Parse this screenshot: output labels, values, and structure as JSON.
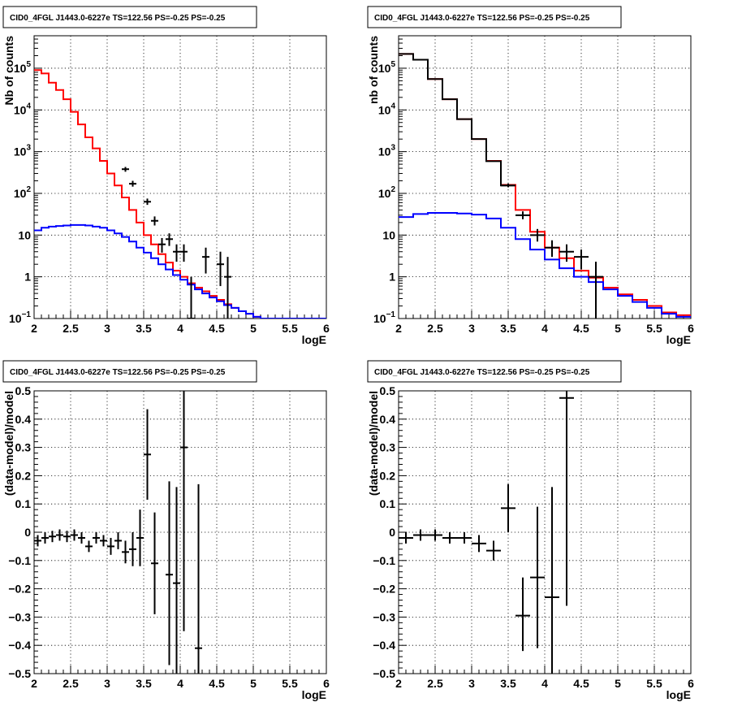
{
  "chart_data": [
    {
      "id": "spec_left",
      "type": "line",
      "title": "CID0_4FGL J1443.0-6227e TS=122.56 PS=-0.25 PS=-0.25",
      "xlabel": "logE",
      "ylabel": "Nb of counts",
      "log_y": true,
      "xlim": [
        2,
        6
      ],
      "ylim": [
        0.1,
        600000
      ],
      "x_ticks": [
        "2",
        "2.5",
        "3",
        "3.5",
        "4",
        "4.5",
        "5",
        "5.5",
        "6"
      ],
      "y_ticks": [
        {
          "v": 0.1,
          "base": "10",
          "exp": "−1"
        },
        {
          "v": 1,
          "base": "1",
          "exp": ""
        },
        {
          "v": 10,
          "base": "10",
          "exp": ""
        },
        {
          "v": 100,
          "base": "10",
          "exp": "2"
        },
        {
          "v": 1000,
          "base": "10",
          "exp": "3"
        },
        {
          "v": 10000,
          "base": "10",
          "exp": "4"
        },
        {
          "v": 100000,
          "base": "10",
          "exp": "5"
        }
      ],
      "bin_edges": [
        2.0,
        2.1,
        2.2,
        2.3,
        2.4,
        2.5,
        2.6,
        2.7,
        2.8,
        2.9,
        3.0,
        3.1,
        3.2,
        3.3,
        3.4,
        3.5,
        3.6,
        3.7,
        3.8,
        3.9,
        4.0,
        4.1,
        4.2,
        4.3,
        4.4,
        4.5,
        4.6,
        4.7,
        4.8,
        4.9,
        5.0,
        5.1,
        5.2,
        5.3,
        5.4,
        5.5,
        5.6,
        5.7,
        5.8,
        5.9,
        6.0
      ],
      "series": [
        {
          "color": "#ff0000",
          "style": "step",
          "values": [
            90000,
            75000,
            45000,
            30000,
            18000,
            9000,
            4500,
            2200,
            1200,
            600,
            300,
            155,
            80,
            40,
            20,
            10,
            6,
            3.5,
            2.2,
            1.4,
            1.0,
            0.7,
            0.55,
            0.45,
            0.35,
            0.28,
            0.22,
            0.18,
            0.15,
            0.13,
            0.11,
            0.1,
            0.1,
            0.1,
            0.1,
            0.1,
            0.1,
            0.1,
            0.1,
            0.1
          ]
        },
        {
          "color": "#0000ff",
          "style": "step",
          "values": [
            13,
            15,
            16,
            16.5,
            17,
            17.5,
            17.5,
            17,
            16,
            15,
            13,
            11,
            9,
            7,
            5,
            3.8,
            2.8,
            2.0,
            1.5,
            1.1,
            0.85,
            0.65,
            0.5,
            0.4,
            0.32,
            0.26,
            0.21,
            0.18,
            0.15,
            0.13,
            0.11,
            0.1,
            0.1,
            0.1,
            0.1,
            0.1,
            0.1,
            0.1,
            0.1,
            0.1
          ]
        }
      ],
      "points": [
        {
          "x": 3.25,
          "y": 380,
          "xerr": 0.05,
          "lo": 330,
          "hi": 430
        },
        {
          "x": 3.35,
          "y": 170,
          "xerr": 0.05,
          "lo": 145,
          "hi": 200
        },
        {
          "x": 3.55,
          "y": 63,
          "xerr": 0.05,
          "lo": 53,
          "hi": 75
        },
        {
          "x": 3.65,
          "y": 22,
          "xerr": 0.05,
          "lo": 17,
          "hi": 28
        },
        {
          "x": 3.75,
          "y": 6,
          "xerr": 0.05,
          "lo": 3.8,
          "hi": 8.5
        },
        {
          "x": 3.85,
          "y": 8,
          "xerr": 0.05,
          "lo": 5.5,
          "hi": 11
        },
        {
          "x": 3.95,
          "y": 4,
          "xerr": 0.05,
          "lo": 2.3,
          "hi": 6
        },
        {
          "x": 4.05,
          "y": 4,
          "xerr": 0.05,
          "lo": 2.3,
          "hi": 6
        },
        {
          "x": 4.15,
          "y": 0,
          "xerr": 0.05,
          "lo": 0.1,
          "hi": 1.0
        },
        {
          "x": 4.35,
          "y": 3,
          "xerr": 0.05,
          "lo": 1.2,
          "hi": 5
        },
        {
          "x": 4.55,
          "y": 2,
          "xerr": 0.05,
          "lo": 0.6,
          "hi": 4
        },
        {
          "x": 4.65,
          "y": 1,
          "xerr": 0.05,
          "lo": 0.1,
          "hi": 3
        }
      ]
    },
    {
      "id": "spec_right",
      "type": "line",
      "title": "CID0_4FGL J1443.0-6227e TS=122.56 PS=-0.25 PS=-0.25",
      "xlabel": "logE",
      "ylabel": "nb of counts",
      "log_y": true,
      "xlim": [
        2,
        6
      ],
      "ylim": [
        0.1,
        600000
      ],
      "x_ticks": [
        "2",
        "2.5",
        "3",
        "3.5",
        "4",
        "4.5",
        "5",
        "5.5",
        "6"
      ],
      "y_ticks": [
        {
          "v": 0.1,
          "base": "10",
          "exp": "−1"
        },
        {
          "v": 1,
          "base": "1",
          "exp": ""
        },
        {
          "v": 10,
          "base": "10",
          "exp": ""
        },
        {
          "v": 100,
          "base": "10",
          "exp": "2"
        },
        {
          "v": 1000,
          "base": "10",
          "exp": "3"
        },
        {
          "v": 10000,
          "base": "10",
          "exp": "4"
        },
        {
          "v": 100000,
          "base": "10",
          "exp": "5"
        }
      ],
      "bin_edges": [
        2.0,
        2.2,
        2.4,
        2.6,
        2.8,
        3.0,
        3.2,
        3.4,
        3.6,
        3.8,
        4.0,
        4.2,
        4.4,
        4.6,
        4.8,
        5.0,
        5.2,
        5.4,
        5.6,
        5.8,
        6.0
      ],
      "series": [
        {
          "color": "#ff0000",
          "style": "step",
          "values": [
            220000,
            160000,
            55000,
            18000,
            6000,
            2000,
            600,
            160,
            40,
            12,
            5,
            2.8,
            1.4,
            0.95,
            0.55,
            0.38,
            0.28,
            0.2,
            0.14,
            0.12
          ]
        },
        {
          "color": "#0000ff",
          "style": "step",
          "values": [
            27,
            32,
            34,
            34,
            33,
            31,
            25,
            15,
            8,
            4.5,
            2.6,
            1.6,
            1.0,
            0.75,
            0.5,
            0.35,
            0.25,
            0.18,
            0.13,
            0.11
          ]
        },
        {
          "color": "#000000",
          "style": "step",
          "values": [
            220000,
            160000,
            55000,
            18000,
            6000,
            2000,
            590,
            155,
            0,
            0,
            0,
            0,
            0,
            0,
            0,
            0,
            0,
            0,
            0,
            0
          ]
        }
      ],
      "points": [
        {
          "x": 3.5,
          "y": 155,
          "xerr": 0.1,
          "lo": 140,
          "hi": 172
        },
        {
          "x": 3.7,
          "y": 30,
          "xerr": 0.1,
          "lo": 24,
          "hi": 37
        },
        {
          "x": 3.9,
          "y": 10,
          "xerr": 0.1,
          "lo": 7,
          "hi": 14
        },
        {
          "x": 4.1,
          "y": 5,
          "xerr": 0.1,
          "lo": 3,
          "hi": 7.5
        },
        {
          "x": 4.3,
          "y": 4,
          "xerr": 0.1,
          "lo": 2.3,
          "hi": 6
        },
        {
          "x": 4.5,
          "y": 3,
          "xerr": 0.1,
          "lo": 1.5,
          "hi": 4.5
        },
        {
          "x": 4.7,
          "y": 1,
          "xerr": 0.1,
          "lo": 0.1,
          "hi": 2.3
        }
      ]
    },
    {
      "id": "resid_left",
      "type": "scatter",
      "title": "CID0_4FGL J1443.0-6227e TS=122.56 PS=-0.25 PS=-0.25",
      "xlabel": "logE",
      "ylabel": "(data-model)/model",
      "log_y": false,
      "xlim": [
        2,
        6
      ],
      "ylim": [
        -0.5,
        0.5
      ],
      "x_ticks": [
        "2",
        "2.5",
        "3",
        "3.5",
        "4",
        "4.5",
        "5",
        "5.5",
        "6"
      ],
      "y_ticks": [
        {
          "v": -0.5,
          "base": "−0.5",
          "exp": ""
        },
        {
          "v": -0.4,
          "base": "−0.4",
          "exp": ""
        },
        {
          "v": -0.3,
          "base": "−0.3",
          "exp": ""
        },
        {
          "v": -0.2,
          "base": "−0.2",
          "exp": ""
        },
        {
          "v": -0.1,
          "base": "−0.1",
          "exp": ""
        },
        {
          "v": 0,
          "base": "0",
          "exp": ""
        },
        {
          "v": 0.1,
          "base": "0.1",
          "exp": ""
        },
        {
          "v": 0.2,
          "base": "0.2",
          "exp": ""
        },
        {
          "v": 0.3,
          "base": "0.3",
          "exp": ""
        },
        {
          "v": 0.4,
          "base": "0.4",
          "exp": ""
        },
        {
          "v": 0.5,
          "base": "0.5",
          "exp": ""
        }
      ],
      "points": [
        {
          "x": 2.05,
          "y": -0.03,
          "xerr": 0.05,
          "lo": -0.05,
          "hi": -0.01
        },
        {
          "x": 2.15,
          "y": -0.02,
          "xerr": 0.05,
          "lo": -0.04,
          "hi": 0.0
        },
        {
          "x": 2.25,
          "y": -0.015,
          "xerr": 0.05,
          "lo": -0.035,
          "hi": 0.005
        },
        {
          "x": 2.35,
          "y": -0.01,
          "xerr": 0.05,
          "lo": -0.03,
          "hi": 0.01
        },
        {
          "x": 2.45,
          "y": -0.015,
          "xerr": 0.05,
          "lo": -0.035,
          "hi": 0.005
        },
        {
          "x": 2.55,
          "y": -0.01,
          "xerr": 0.05,
          "lo": -0.03,
          "hi": 0.01
        },
        {
          "x": 2.65,
          "y": -0.02,
          "xerr": 0.05,
          "lo": -0.04,
          "hi": 0.0
        },
        {
          "x": 2.75,
          "y": -0.05,
          "xerr": 0.05,
          "lo": -0.07,
          "hi": -0.03
        },
        {
          "x": 2.85,
          "y": -0.02,
          "xerr": 0.05,
          "lo": -0.04,
          "hi": 0.0
        },
        {
          "x": 2.95,
          "y": -0.03,
          "xerr": 0.05,
          "lo": -0.05,
          "hi": -0.01
        },
        {
          "x": 3.05,
          "y": -0.05,
          "xerr": 0.05,
          "lo": -0.08,
          "hi": -0.02
        },
        {
          "x": 3.15,
          "y": -0.03,
          "xerr": 0.05,
          "lo": -0.06,
          "hi": 0.0
        },
        {
          "x": 3.25,
          "y": -0.07,
          "xerr": 0.05,
          "lo": -0.11,
          "hi": -0.03
        },
        {
          "x": 3.35,
          "y": -0.06,
          "xerr": 0.05,
          "lo": -0.12,
          "hi": 0.0
        },
        {
          "x": 3.45,
          "y": -0.02,
          "xerr": 0.05,
          "lo": -0.12,
          "hi": 0.08
        },
        {
          "x": 3.55,
          "y": 0.275,
          "xerr": 0.05,
          "lo": 0.115,
          "hi": 0.435
        },
        {
          "x": 3.65,
          "y": -0.11,
          "xerr": 0.05,
          "lo": -0.29,
          "hi": 0.07
        },
        {
          "x": 3.85,
          "y": -0.15,
          "xerr": 0.05,
          "lo": -0.47,
          "hi": 0.18
        },
        {
          "x": 3.95,
          "y": -0.18,
          "xerr": 0.05,
          "lo": -0.5,
          "hi": 0.16
        },
        {
          "x": 4.05,
          "y": 0.3,
          "xerr": 0.05,
          "lo": -0.35,
          "hi": 0.5
        },
        {
          "x": 4.25,
          "y": -0.41,
          "xerr": 0.05,
          "lo": -0.5,
          "hi": 0.17
        }
      ]
    },
    {
      "id": "resid_right",
      "type": "scatter",
      "title": "CID0_4FGL J1443.0-6227e TS=122.56 PS=-0.25 PS=-0.25",
      "xlabel": "logE",
      "ylabel": "(data-model)/model",
      "log_y": false,
      "xlim": [
        2,
        6
      ],
      "ylim": [
        -0.5,
        0.5
      ],
      "x_ticks": [
        "2",
        "2.5",
        "3",
        "3.5",
        "4",
        "4.5",
        "5",
        "5.5",
        "6"
      ],
      "y_ticks": [
        {
          "v": -0.5,
          "base": "−0.5",
          "exp": ""
        },
        {
          "v": -0.4,
          "base": "−0.4",
          "exp": ""
        },
        {
          "v": -0.3,
          "base": "−0.3",
          "exp": ""
        },
        {
          "v": -0.2,
          "base": "−0.2",
          "exp": ""
        },
        {
          "v": -0.1,
          "base": "−0.1",
          "exp": ""
        },
        {
          "v": 0,
          "base": "0",
          "exp": ""
        },
        {
          "v": 0.1,
          "base": "0.1",
          "exp": ""
        },
        {
          "v": 0.2,
          "base": "0.2",
          "exp": ""
        },
        {
          "v": 0.3,
          "base": "0.3",
          "exp": ""
        },
        {
          "v": 0.4,
          "base": "0.4",
          "exp": ""
        },
        {
          "v": 0.5,
          "base": "0.5",
          "exp": ""
        }
      ],
      "points": [
        {
          "x": 2.1,
          "y": -0.02,
          "xerr": 0.1,
          "lo": -0.04,
          "hi": 0.0
        },
        {
          "x": 2.3,
          "y": -0.01,
          "xerr": 0.1,
          "lo": -0.03,
          "hi": 0.01
        },
        {
          "x": 2.5,
          "y": -0.01,
          "xerr": 0.1,
          "lo": -0.03,
          "hi": 0.01
        },
        {
          "x": 2.7,
          "y": -0.02,
          "xerr": 0.1,
          "lo": -0.04,
          "hi": 0.0
        },
        {
          "x": 2.9,
          "y": -0.02,
          "xerr": 0.1,
          "lo": -0.04,
          "hi": 0.0
        },
        {
          "x": 3.1,
          "y": -0.04,
          "xerr": 0.1,
          "lo": -0.07,
          "hi": -0.01
        },
        {
          "x": 3.3,
          "y": -0.065,
          "xerr": 0.1,
          "lo": -0.1,
          "hi": -0.03
        },
        {
          "x": 3.5,
          "y": 0.085,
          "xerr": 0.1,
          "lo": 0.0,
          "hi": 0.17
        },
        {
          "x": 3.7,
          "y": -0.295,
          "xerr": 0.1,
          "lo": -0.42,
          "hi": -0.16
        },
        {
          "x": 3.9,
          "y": -0.16,
          "xerr": 0.1,
          "lo": -0.41,
          "hi": 0.09
        },
        {
          "x": 4.1,
          "y": -0.23,
          "xerr": 0.1,
          "lo": -0.5,
          "hi": 0.16
        },
        {
          "x": 4.3,
          "y": 0.475,
          "xerr": 0.1,
          "lo": -0.26,
          "hi": 0.5
        }
      ]
    }
  ]
}
